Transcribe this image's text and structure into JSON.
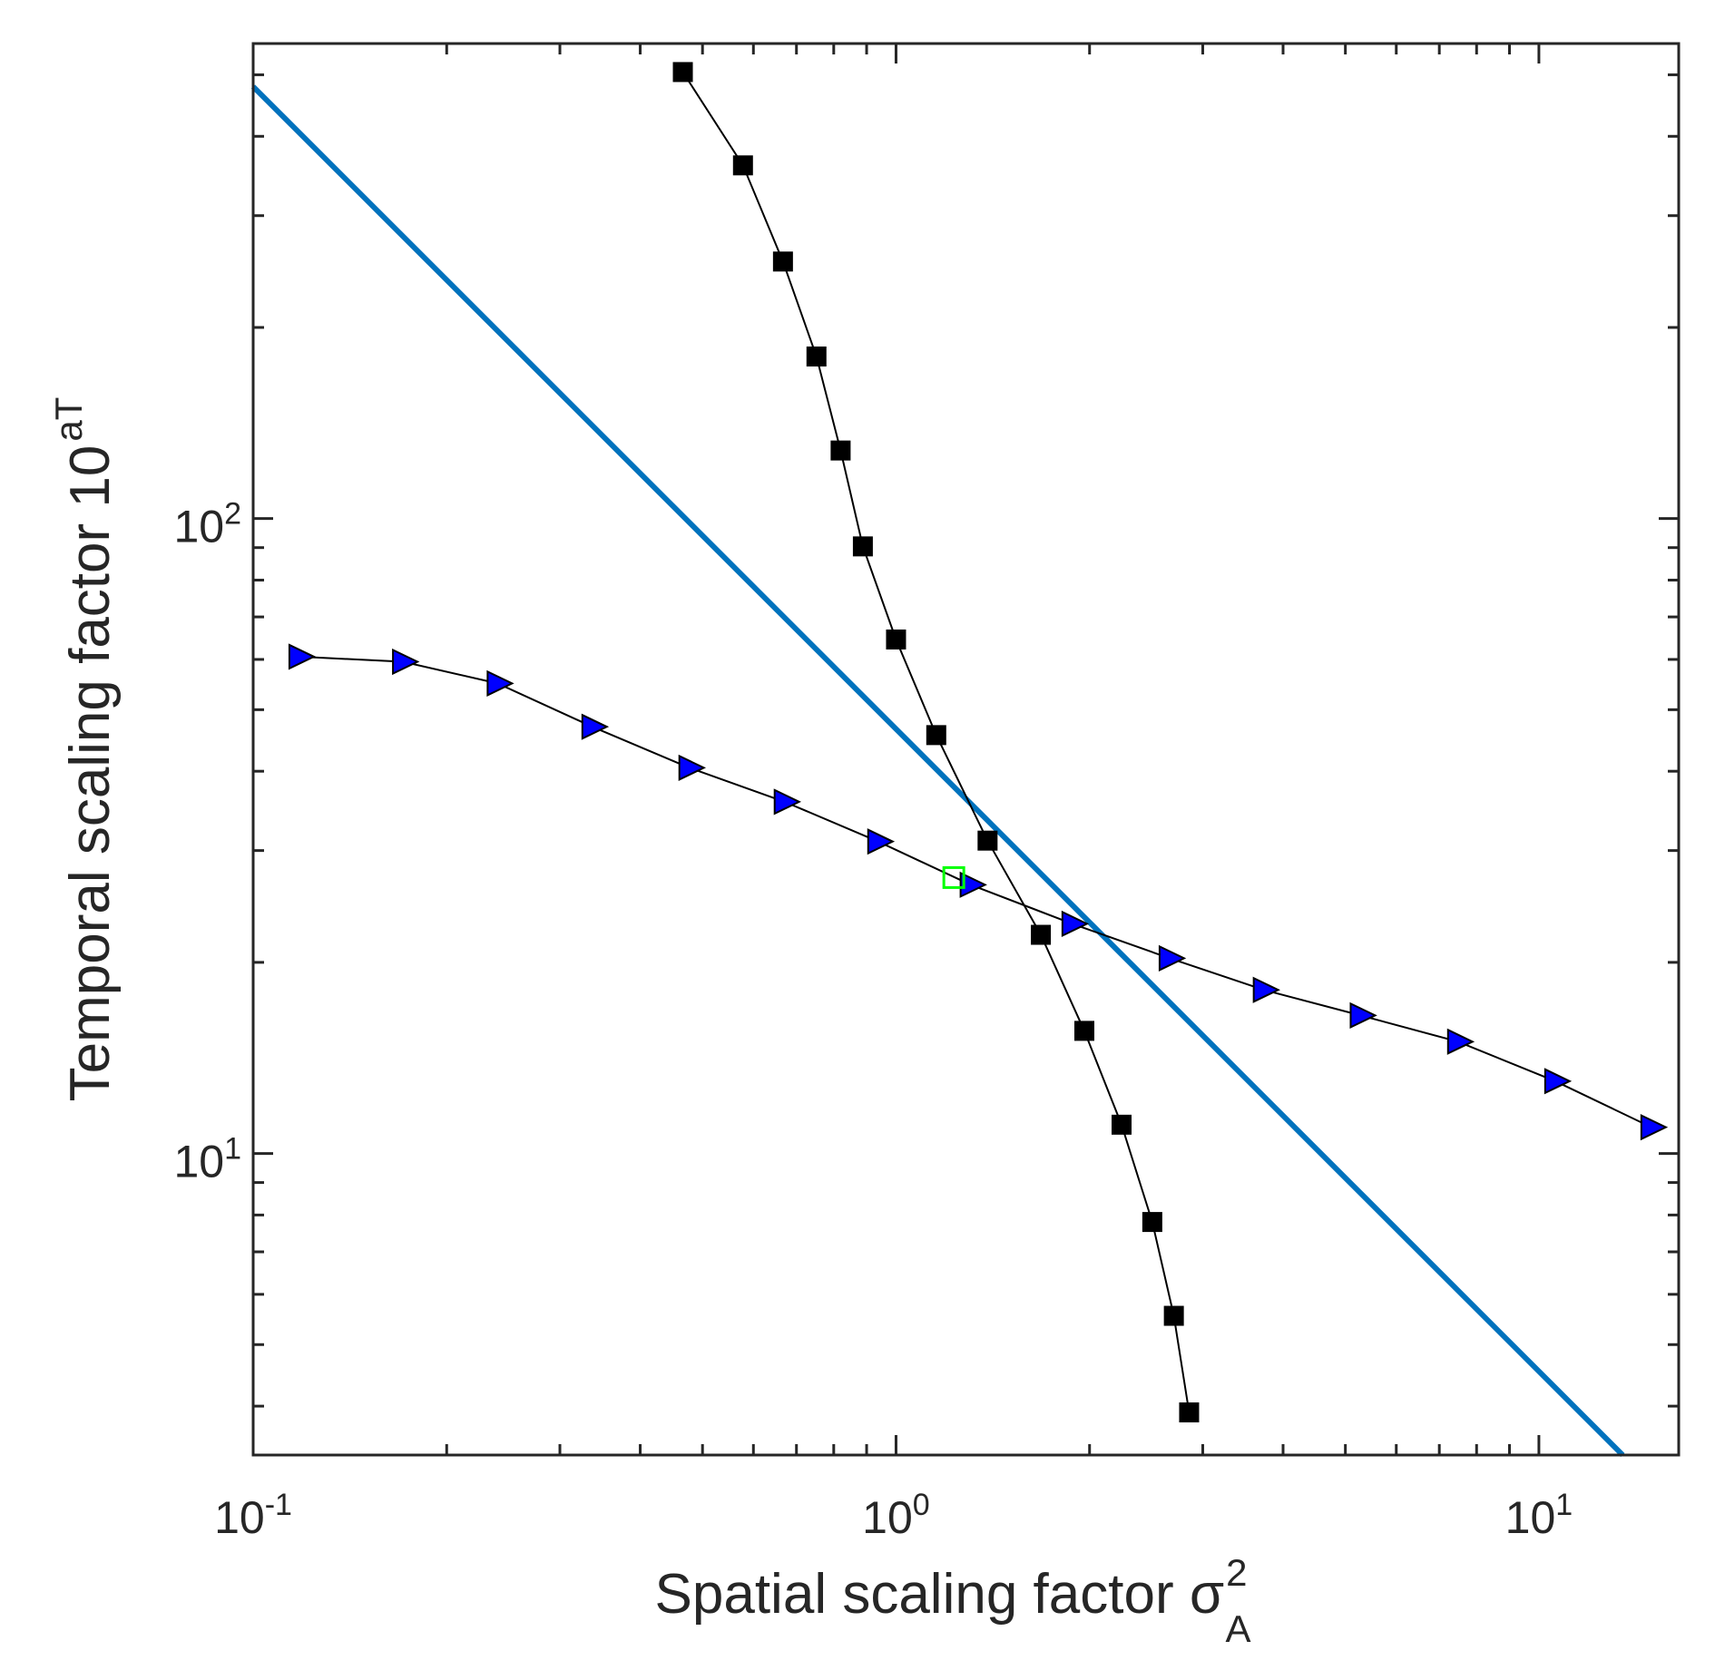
{
  "chart_data": {
    "type": "line",
    "title": "",
    "xlabel": {
      "text": "Spatial scaling factor σ",
      "superscript": "2",
      "subscript": "A"
    },
    "ylabel": {
      "text": "Temporal scaling factor 10",
      "superscript": "aT"
    },
    "xscale": "log",
    "yscale": "log",
    "xlim": [
      0.1,
      16.5
    ],
    "ylim": [
      3.35,
      560
    ],
    "x_ticks": [
      {
        "value": 0.1,
        "base": "10",
        "exp": "-1"
      },
      {
        "value": 1,
        "base": "10",
        "exp": "0"
      },
      {
        "value": 10,
        "base": "10",
        "exp": "1"
      }
    ],
    "y_ticks": [
      {
        "value": 10,
        "base": "10",
        "exp": "1"
      },
      {
        "value": 100,
        "base": "10",
        "exp": "2"
      }
    ],
    "series": [
      {
        "name": "black-square-series",
        "color": "#000000",
        "marker": "square",
        "x": [
          0.466,
          0.578,
          0.667,
          0.752,
          0.82,
          0.888,
          1.0,
          1.155,
          1.388,
          1.68,
          1.963,
          2.243,
          2.504,
          2.705,
          2.857
        ],
        "y": [
          505,
          360,
          254,
          180,
          128,
          90.4,
          64.5,
          45.6,
          31.1,
          22.1,
          15.6,
          11.1,
          7.8,
          5.55,
          3.91
        ]
      },
      {
        "name": "blue-triangle-series",
        "color": "#0000ff",
        "marker": "triangle-right",
        "x": [
          0.118,
          0.171,
          0.24,
          0.337,
          0.477,
          0.671,
          0.938,
          1.306,
          1.881,
          2.664,
          3.732,
          5.281,
          7.485,
          10.6,
          14.96
        ],
        "y": [
          60.6,
          59.5,
          55.0,
          47.0,
          40.5,
          35.8,
          31.0,
          26.5,
          23.0,
          20.3,
          18.1,
          16.5,
          15.0,
          13.0,
          11.0
        ]
      },
      {
        "name": "blue-fit-line",
        "color": "#0072bd",
        "marker": "none",
        "x": [
          0.1,
          13.5
        ],
        "y": [
          479,
          3.35
        ]
      },
      {
        "name": "green-intersection-marker",
        "color": "#00ff00",
        "marker": "open-square",
        "x": [
          1.23
        ],
        "y": [
          27.2
        ]
      }
    ]
  }
}
